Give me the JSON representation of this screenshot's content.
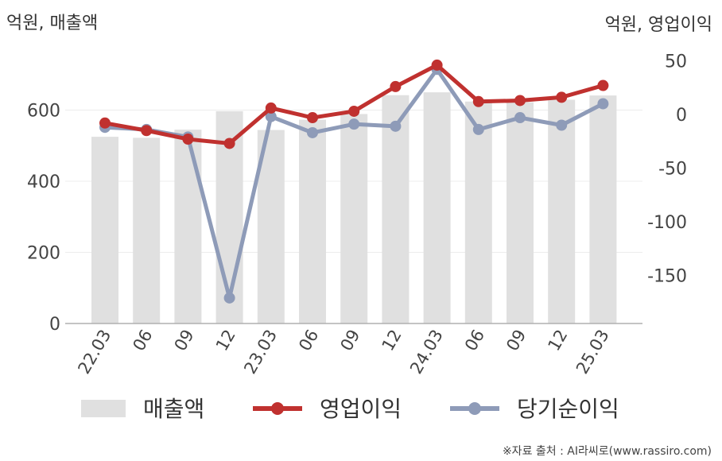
{
  "chart_data": {
    "type": "bar+line",
    "categories": [
      "22.03",
      "06",
      "09",
      "12",
      "23.03",
      "06",
      "09",
      "12",
      "24.03",
      "06",
      "09",
      "12",
      "25.03"
    ],
    "left_axis": {
      "title": "억원, 매출액",
      "ticks": [
        "0",
        "200",
        "400",
        "600"
      ],
      "range": [
        0,
        700
      ]
    },
    "right_axis": {
      "title": "억원, 영업이익",
      "ticks": [
        "50",
        "0",
        "-50",
        "-100",
        "-150"
      ],
      "range": [
        -195,
        55
      ]
    },
    "series": [
      {
        "name": "매출액",
        "type": "bar",
        "axis": "left",
        "color": "#e0e0e0",
        "values": [
          525,
          522,
          545,
          597,
          544,
          573,
          589,
          642,
          650,
          624,
          622,
          629,
          641
        ]
      },
      {
        "name": "영업이익",
        "type": "line",
        "axis": "right",
        "color": "#c0312f",
        "values": [
          -8,
          -15,
          -23,
          -27,
          6,
          -3,
          3,
          26,
          46,
          12,
          13,
          16,
          27
        ]
      },
      {
        "name": "당기순이익",
        "type": "line",
        "axis": "right",
        "color": "#8e9bb8",
        "values": [
          -12,
          -14,
          -21,
          -171,
          -2,
          -17,
          -9,
          -11,
          42,
          -14,
          -3,
          -10,
          10
        ]
      }
    ],
    "grid": true,
    "legend": "bottom"
  },
  "source_note": "※자료 출처 : AI라씨로(www.rassiro.com)"
}
